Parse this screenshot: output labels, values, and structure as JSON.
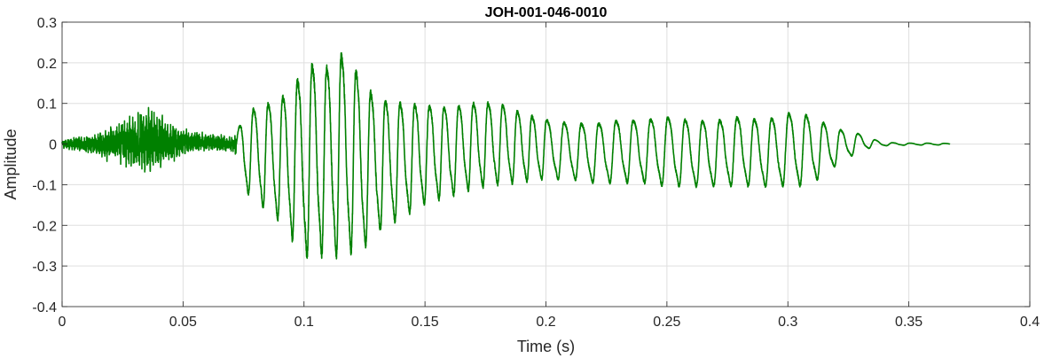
{
  "chart_data": {
    "type": "line",
    "title": "JOH-001-046-0010",
    "xlabel": "Time (s)",
    "ylabel": "Amplitude",
    "xlim": [
      0,
      0.4
    ],
    "ylim": [
      -0.4,
      0.3
    ],
    "xticks": [
      0,
      0.05,
      0.1,
      0.15,
      0.2,
      0.25,
      0.3,
      0.35,
      0.4
    ],
    "xtick_labels": [
      "0",
      "0.05",
      "0.1",
      "0.15",
      "0.2",
      "0.25",
      "0.3",
      "0.35",
      "0.4"
    ],
    "yticks": [
      -0.4,
      -0.3,
      -0.2,
      -0.1,
      0,
      0.1,
      0.2,
      0.3
    ],
    "ytick_labels": [
      "-0.4",
      "-0.3",
      "-0.2",
      "-0.1",
      "0",
      "0.1",
      "0.2",
      "0.3"
    ],
    "grid": true,
    "series": [
      {
        "color": "#008000",
        "duration": 0.367,
        "envelope": {
          "t": [
            0,
            0.005,
            0.015,
            0.02,
            0.03,
            0.035,
            0.04,
            0.045,
            0.05,
            0.06,
            0.07,
            0.072,
            0.075,
            0.08,
            0.09,
            0.095,
            0.1,
            0.105,
            0.11,
            0.115,
            0.12,
            0.125,
            0.13,
            0.14,
            0.15,
            0.16,
            0.17,
            0.18,
            0.19,
            0.2,
            0.21,
            0.22,
            0.23,
            0.24,
            0.25,
            0.26,
            0.27,
            0.28,
            0.29,
            0.3,
            0.305,
            0.31,
            0.315,
            0.32,
            0.325,
            0.33,
            0.335,
            0.34,
            0.35,
            0.36,
            0.367
          ],
          "upper": [
            0.01,
            0.02,
            0.03,
            0.05,
            0.08,
            0.1,
            0.08,
            0.06,
            0.04,
            0.03,
            0.02,
            0.03,
            0.1,
            0.12,
            0.15,
            0.19,
            0.24,
            0.27,
            0.25,
            0.29,
            0.26,
            0.2,
            0.16,
            0.14,
            0.13,
            0.12,
            0.13,
            0.13,
            0.1,
            0.08,
            0.07,
            0.07,
            0.08,
            0.08,
            0.09,
            0.08,
            0.08,
            0.09,
            0.08,
            0.1,
            0.1,
            0.09,
            0.07,
            0.05,
            0.04,
            0.03,
            0.015,
            0.005,
            0.003,
            0.003,
            0.002
          ],
          "lower": [
            -0.01,
            -0.02,
            -0.03,
            -0.05,
            -0.07,
            -0.08,
            -0.07,
            -0.05,
            -0.03,
            -0.02,
            -0.02,
            -0.04,
            -0.13,
            -0.16,
            -0.22,
            -0.27,
            -0.32,
            -0.32,
            -0.32,
            -0.32,
            -0.31,
            -0.29,
            -0.25,
            -0.21,
            -0.17,
            -0.15,
            -0.13,
            -0.12,
            -0.11,
            -0.1,
            -0.1,
            -0.11,
            -0.11,
            -0.11,
            -0.12,
            -0.12,
            -0.12,
            -0.12,
            -0.12,
            -0.12,
            -0.12,
            -0.11,
            -0.09,
            -0.06,
            -0.04,
            -0.02,
            -0.01,
            -0.005,
            -0.003,
            -0.003,
            -0.002
          ]
        }
      }
    ]
  }
}
